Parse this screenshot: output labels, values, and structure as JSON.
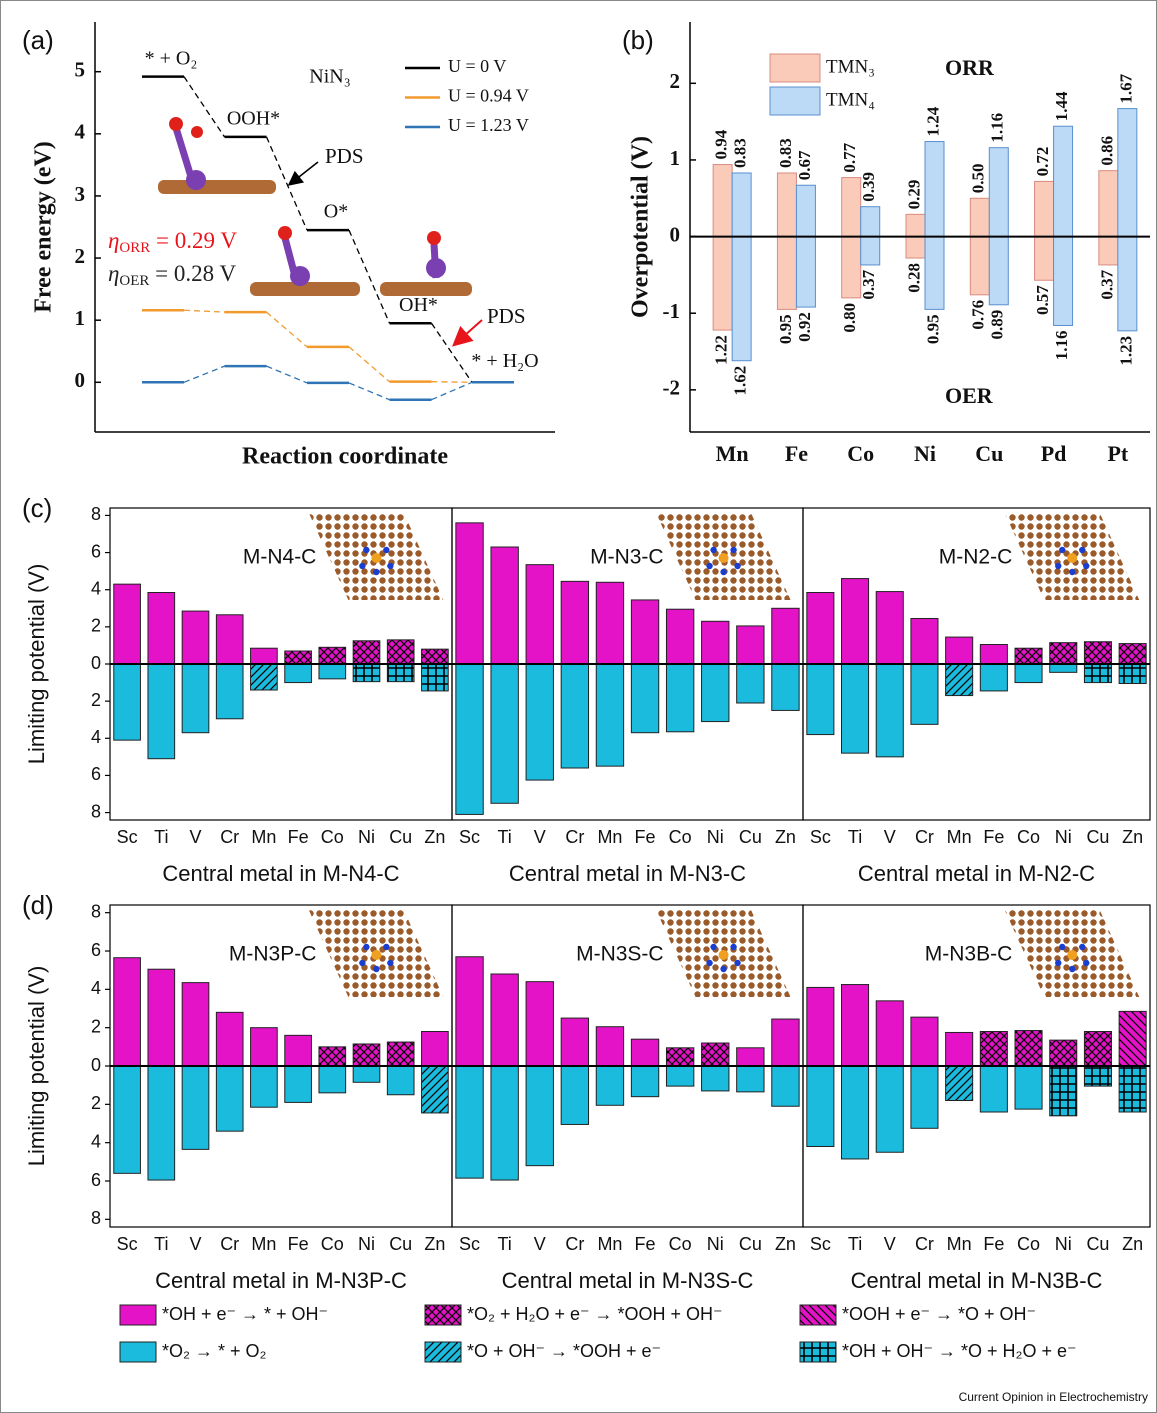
{
  "credit": "Current Opinion in Electrochemistry",
  "legend": [
    {
      "label": "*OH + e⁻ → * + OH⁻",
      "color": "#e513c8",
      "pattern": "solid"
    },
    {
      "label": "*O₂ + H₂O + e⁻ → *OOH + OH⁻",
      "color": "#e513c8",
      "pattern": "crosshatch"
    },
    {
      "label": "*OOH + e⁻ → *O + OH⁻",
      "color": "#e513c8",
      "pattern": "backdiag"
    },
    {
      "label": "*O₂ → * + O₂",
      "color": "#1bbbde",
      "pattern": "solid"
    },
    {
      "label": "*O + OH⁻ → *OOH + e⁻",
      "color": "#1bbbde",
      "pattern": "diag"
    },
    {
      "label": "*OH + OH⁻ → *O + H₂O + e⁻",
      "color": "#1bbbde",
      "pattern": "grid"
    }
  ],
  "chart_data": [
    {
      "type": "energy_levels",
      "panel": "(a)",
      "title": "NiN₃",
      "categories": [
        "* + O₂",
        "OOH*",
        "O*",
        "OH*",
        "* + H₂O"
      ],
      "series": [
        {
          "name": "U = 0 V",
          "color": "#000000",
          "values": [
            4.92,
            3.95,
            2.45,
            0.95,
            0
          ]
        },
        {
          "name": "U = 0.94 V",
          "color": "#f39a2e",
          "values": [
            1.16,
            1.13,
            0.57,
            0.01,
            0
          ]
        },
        {
          "name": "U = 1.23 V",
          "color": "#2f74b5",
          "values": [
            0,
            0.26,
            -0.01,
            -0.28,
            0
          ]
        }
      ],
      "ylim": [
        -0.8,
        5.8
      ],
      "yticks": [
        0,
        1,
        2,
        3,
        4,
        5
      ],
      "ylabel": "Free energy (eV)",
      "xlabel": "Reaction coordinate",
      "annotations": [
        {
          "text": "PDS",
          "color": "#000000"
        },
        {
          "text": "PDS",
          "color": "#e8141b"
        }
      ],
      "overpotentials": [
        {
          "symbol": "η",
          "sub": "ORR",
          "text": " = 0.29 V",
          "color": "#e8141b"
        },
        {
          "symbol": "η",
          "sub": "OER",
          "text": " = 0.28 V",
          "color": "#222222"
        }
      ]
    },
    {
      "type": "bar_updown",
      "panel": "(b)",
      "upper_label": "ORR",
      "upper_label_color": "#e8141b",
      "lower_label": "OER",
      "categories": [
        "Mn",
        "Fe",
        "Co",
        "Ni",
        "Cu",
        "Pd",
        "Pt"
      ],
      "series": [
        {
          "name": "TMN₃",
          "color": "#f9cbb8",
          "edge": "#d98b80",
          "values": [
            0.94,
            0.83,
            0.77,
            0.29,
            0.5,
            0.72,
            0.86
          ],
          "value_labels": [
            "0.94",
            "0.83",
            "0.77",
            "0.29",
            "0.50",
            "0.72",
            "0.86"
          ],
          "lower_values": [
            -1.22,
            -0.95,
            -0.8,
            -0.28,
            -0.76,
            -0.57,
            -0.37
          ],
          "lower_value_labels": [
            "1.22",
            "0.95",
            "0.80",
            "0.28",
            "0.76",
            "0.57",
            "0.37"
          ]
        },
        {
          "name": "TMN₄",
          "color": "#bcdaf6",
          "edge": "#5a8fd0",
          "values": [
            0.83,
            0.67,
            0.39,
            1.24,
            1.16,
            1.44,
            1.67
          ],
          "value_labels": [
            "0.83",
            "0.67",
            "0.39",
            "1.24",
            "1.16",
            "1.44",
            "1.67"
          ],
          "lower_values": [
            -1.62,
            -0.92,
            -0.37,
            -0.95,
            -0.89,
            -1.16,
            -1.23
          ],
          "lower_value_labels": [
            "1.62",
            "0.92",
            "0.37",
            "0.95",
            "0.89",
            "1.16",
            "1.23"
          ]
        }
      ],
      "highlight": {
        "series": 0,
        "category": 3,
        "color": "#e8141b"
      },
      "ylim": [
        -2.55,
        2.8
      ],
      "yticks": [
        -2,
        -1,
        0,
        1,
        2
      ],
      "ylabel": "Overpotential (V)"
    },
    {
      "type": "bar_steps",
      "panel": "(c)",
      "title": "M-N4-C",
      "xlabel": "Central metal in M-N4-C",
      "ylabel": "Limiting potential (V)",
      "categories": [
        "Sc",
        "Ti",
        "V",
        "Cr",
        "Mn",
        "Fe",
        "Co",
        "Ni",
        "Cu",
        "Zn"
      ],
      "series": [
        {
          "values": [
            4.3,
            3.85,
            2.85,
            2.65,
            0.85,
            0.7,
            0.9,
            1.25,
            1.3,
            0.8
          ],
          "steps": [
            0,
            0,
            0,
            0,
            0,
            1,
            1,
            1,
            1,
            1
          ]
        },
        {
          "values": [
            -4.1,
            -5.1,
            -3.7,
            -2.95,
            -1.4,
            -1.0,
            -0.8,
            -0.95,
            -0.95,
            -1.45
          ],
          "steps": [
            3,
            3,
            3,
            3,
            4,
            3,
            3,
            5,
            5,
            5
          ]
        }
      ],
      "ylim": [
        -8.4,
        8.4
      ],
      "yticks": [
        {
          "value": -8,
          "label": "8"
        },
        {
          "value": -6,
          "label": "6"
        },
        {
          "value": -4,
          "label": "4"
        },
        {
          "value": -2,
          "label": "2"
        },
        0,
        2,
        4,
        6,
        8
      ]
    },
    {
      "type": "bar_steps",
      "title": "M-N3-C",
      "xlabel": "Central metal in M-N3-C",
      "categories": [
        "Sc",
        "Ti",
        "V",
        "Cr",
        "Mn",
        "Fe",
        "Co",
        "Ni",
        "Cu",
        "Zn"
      ],
      "series": [
        {
          "values": [
            7.6,
            6.3,
            5.35,
            4.45,
            4.4,
            3.45,
            2.95,
            2.3,
            2.05,
            3.0
          ],
          "steps": [
            0,
            0,
            0,
            0,
            0,
            0,
            0,
            0,
            0,
            0
          ]
        },
        {
          "values": [
            -8.1,
            -7.5,
            -6.25,
            -5.6,
            -5.5,
            -3.7,
            -3.65,
            -3.1,
            -2.1,
            -2.5
          ],
          "steps": [
            3,
            3,
            3,
            3,
            3,
            3,
            3,
            3,
            3,
            3
          ]
        }
      ],
      "ylim": [
        -8.4,
        8.4
      ]
    },
    {
      "type": "bar_steps",
      "title": "M-N2-C",
      "xlabel": "Central metal in M-N2-C",
      "categories": [
        "Sc",
        "Ti",
        "V",
        "Cr",
        "Mn",
        "Fe",
        "Co",
        "Ni",
        "Cu",
        "Zn"
      ],
      "series": [
        {
          "values": [
            3.85,
            4.6,
            3.9,
            2.45,
            1.45,
            1.05,
            0.85,
            1.15,
            1.2,
            1.1
          ],
          "steps": [
            0,
            0,
            0,
            0,
            0,
            0,
            1,
            1,
            1,
            1
          ]
        },
        {
          "values": [
            -3.8,
            -4.8,
            -5.0,
            -3.25,
            -1.7,
            -1.45,
            -1.0,
            -0.45,
            -1.0,
            -1.05
          ],
          "steps": [
            3,
            3,
            3,
            3,
            4,
            3,
            3,
            3,
            5,
            5
          ]
        }
      ],
      "ylim": [
        -8.4,
        8.4
      ]
    },
    {
      "type": "bar_steps",
      "panel": "(d)",
      "title": "M-N3P-C",
      "xlabel": "Central metal in M-N3P-C",
      "ylabel": "Limiting potential (V)",
      "categories": [
        "Sc",
        "Ti",
        "V",
        "Cr",
        "Mn",
        "Fe",
        "Co",
        "Ni",
        "Cu",
        "Zn"
      ],
      "series": [
        {
          "values": [
            5.65,
            5.05,
            4.35,
            2.8,
            2.0,
            1.6,
            1.0,
            1.15,
            1.25,
            1.8
          ],
          "steps": [
            0,
            0,
            0,
            0,
            0,
            0,
            1,
            1,
            1,
            0
          ]
        },
        {
          "values": [
            -5.6,
            -5.95,
            -4.35,
            -3.4,
            -2.15,
            -1.9,
            -1.4,
            -0.85,
            -1.5,
            -2.45
          ],
          "steps": [
            3,
            3,
            3,
            3,
            3,
            3,
            3,
            3,
            3,
            4
          ]
        }
      ],
      "ylim": [
        -8.4,
        8.4
      ],
      "yticks": [
        {
          "value": -8,
          "label": "8"
        },
        {
          "value": -6,
          "label": "6"
        },
        {
          "value": -4,
          "label": "4"
        },
        {
          "value": -2,
          "label": "2"
        },
        0,
        2,
        4,
        6,
        8
      ]
    },
    {
      "type": "bar_steps",
      "title": "M-N3S-C",
      "xlabel": "Central metal in M-N3S-C",
      "categories": [
        "Sc",
        "Ti",
        "V",
        "Cr",
        "Mn",
        "Fe",
        "Co",
        "Ni",
        "Cu",
        "Zn"
      ],
      "series": [
        {
          "values": [
            5.7,
            4.8,
            4.4,
            2.5,
            2.05,
            1.4,
            0.95,
            1.2,
            0.95,
            2.45
          ],
          "steps": [
            0,
            0,
            0,
            0,
            0,
            0,
            1,
            1,
            0,
            0
          ]
        },
        {
          "values": [
            -5.85,
            -5.95,
            -5.2,
            -3.05,
            -2.05,
            -1.6,
            -1.05,
            -1.3,
            -1.35,
            -2.1
          ],
          "steps": [
            3,
            3,
            3,
            3,
            3,
            3,
            3,
            3,
            3,
            3
          ]
        }
      ],
      "ylim": [
        -8.4,
        8.4
      ]
    },
    {
      "type": "bar_steps",
      "title": "M-N3B-C",
      "xlabel": "Central metal in M-N3B-C",
      "categories": [
        "Sc",
        "Ti",
        "V",
        "Cr",
        "Mn",
        "Fe",
        "Co",
        "Ni",
        "Cu",
        "Zn"
      ],
      "series": [
        {
          "values": [
            4.1,
            4.25,
            3.4,
            2.55,
            1.75,
            1.8,
            1.85,
            1.35,
            1.8,
            2.85
          ],
          "steps": [
            0,
            0,
            0,
            0,
            0,
            1,
            1,
            1,
            1,
            2
          ]
        },
        {
          "values": [
            -4.2,
            -4.85,
            -4.5,
            -3.25,
            -1.8,
            -2.4,
            -2.25,
            -2.6,
            -1.05,
            -2.4
          ],
          "steps": [
            3,
            3,
            3,
            3,
            4,
            3,
            3,
            5,
            5,
            5
          ]
        }
      ],
      "ylim": [
        -8.4,
        8.4
      ]
    }
  ]
}
